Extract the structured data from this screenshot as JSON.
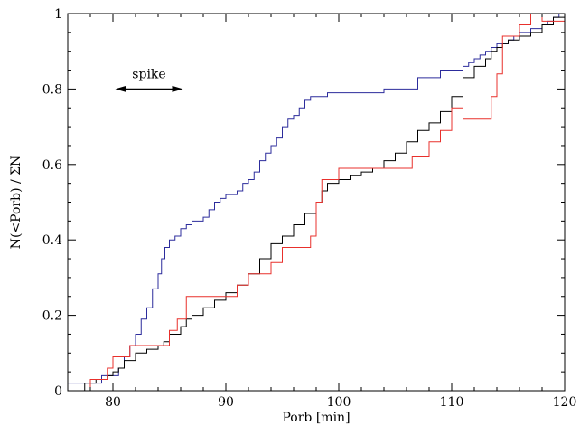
{
  "chart_data": {
    "type": "line",
    "xlabel": "Porb [min]",
    "ylabel": "N(<Porb) / ΣN",
    "xlim": [
      76,
      120
    ],
    "ylim": [
      0,
      1
    ],
    "x_ticks": [
      80,
      90,
      100,
      110,
      120
    ],
    "x_tick_labels": [
      "80",
      "90",
      "100",
      "110",
      "120"
    ],
    "y_ticks": [
      0,
      0.2,
      0.4,
      0.6,
      0.8,
      1
    ],
    "y_tick_labels": [
      "0",
      "0.2",
      "0.4",
      "0.6",
      "0.8",
      "1"
    ],
    "grid": false,
    "step": true,
    "annotation": {
      "text": "spike",
      "arrow_from_x": 80.2,
      "arrow_to_x": 86.2,
      "arrow_y": 0.8,
      "text_x": 83.2,
      "text_y": 0.84
    },
    "series": [
      {
        "color": "#2c2c9c",
        "points": [
          [
            76,
            0.0
          ],
          [
            76,
            0.02
          ],
          [
            79,
            0.02
          ],
          [
            79,
            0.04
          ],
          [
            80,
            0.04
          ],
          [
            80.5,
            0.06
          ],
          [
            81,
            0.09
          ],
          [
            81.5,
            0.12
          ],
          [
            82,
            0.15
          ],
          [
            82.5,
            0.19
          ],
          [
            83,
            0.22
          ],
          [
            83.5,
            0.27
          ],
          [
            84,
            0.31
          ],
          [
            84.3,
            0.35
          ],
          [
            84.6,
            0.38
          ],
          [
            85,
            0.4
          ],
          [
            85.5,
            0.41
          ],
          [
            86,
            0.43
          ],
          [
            86.5,
            0.44
          ],
          [
            87,
            0.45
          ],
          [
            88,
            0.46
          ],
          [
            88.5,
            0.48
          ],
          [
            89,
            0.5
          ],
          [
            89.5,
            0.51
          ],
          [
            90,
            0.52
          ],
          [
            91,
            0.53
          ],
          [
            91.5,
            0.55
          ],
          [
            92,
            0.56
          ],
          [
            92.5,
            0.58
          ],
          [
            93,
            0.61
          ],
          [
            93.5,
            0.63
          ],
          [
            94,
            0.65
          ],
          [
            94.5,
            0.67
          ],
          [
            95,
            0.7
          ],
          [
            95.5,
            0.72
          ],
          [
            96,
            0.73
          ],
          [
            96.5,
            0.75
          ],
          [
            97,
            0.77
          ],
          [
            97.5,
            0.78
          ],
          [
            98,
            0.78
          ],
          [
            99,
            0.79
          ],
          [
            104,
            0.79
          ],
          [
            104,
            0.8
          ],
          [
            107,
            0.81
          ],
          [
            107,
            0.83
          ],
          [
            109,
            0.84
          ],
          [
            109,
            0.85
          ],
          [
            111,
            0.86
          ],
          [
            111.5,
            0.87
          ],
          [
            112,
            0.88
          ],
          [
            112.5,
            0.89
          ],
          [
            113,
            0.9
          ],
          [
            113.5,
            0.91
          ],
          [
            114,
            0.92
          ],
          [
            115,
            0.93
          ],
          [
            115.5,
            0.94
          ],
          [
            116,
            0.95
          ],
          [
            117,
            0.96
          ],
          [
            118,
            0.97
          ],
          [
            118.5,
            0.98
          ],
          [
            119,
            0.99
          ],
          [
            119.5,
            1.0
          ],
          [
            120,
            1.0
          ]
        ]
      },
      {
        "color": "#000000",
        "points": [
          [
            76,
            0.0
          ],
          [
            77.5,
            0.0
          ],
          [
            77.5,
            0.02
          ],
          [
            78.5,
            0.03
          ],
          [
            79.5,
            0.04
          ],
          [
            80,
            0.05
          ],
          [
            80.5,
            0.06
          ],
          [
            81,
            0.08
          ],
          [
            82,
            0.1
          ],
          [
            83,
            0.11
          ],
          [
            84,
            0.12
          ],
          [
            84.5,
            0.13
          ],
          [
            85,
            0.15
          ],
          [
            86,
            0.17
          ],
          [
            86.5,
            0.19
          ],
          [
            87,
            0.2
          ],
          [
            88,
            0.22
          ],
          [
            89,
            0.24
          ],
          [
            90,
            0.26
          ],
          [
            91,
            0.28
          ],
          [
            92,
            0.31
          ],
          [
            93,
            0.35
          ],
          [
            94,
            0.39
          ],
          [
            95,
            0.41
          ],
          [
            96,
            0.44
          ],
          [
            97,
            0.47
          ],
          [
            98,
            0.5
          ],
          [
            98.5,
            0.53
          ],
          [
            99,
            0.55
          ],
          [
            100,
            0.56
          ],
          [
            101,
            0.57
          ],
          [
            102,
            0.58
          ],
          [
            103,
            0.59
          ],
          [
            104,
            0.61
          ],
          [
            105,
            0.63
          ],
          [
            106,
            0.66
          ],
          [
            107,
            0.69
          ],
          [
            108,
            0.71
          ],
          [
            109,
            0.74
          ],
          [
            110,
            0.78
          ],
          [
            111,
            0.83
          ],
          [
            112,
            0.86
          ],
          [
            113,
            0.88
          ],
          [
            113.5,
            0.9
          ],
          [
            114,
            0.91
          ],
          [
            114.5,
            0.92
          ],
          [
            115,
            0.93
          ],
          [
            116,
            0.94
          ],
          [
            117,
            0.95
          ],
          [
            118,
            0.97
          ],
          [
            119,
            0.99
          ],
          [
            120,
            1.0
          ]
        ]
      },
      {
        "color": "#e8302c",
        "points": [
          [
            76,
            0.0
          ],
          [
            78,
            0.0
          ],
          [
            78,
            0.03
          ],
          [
            79.5,
            0.03
          ],
          [
            79.5,
            0.06
          ],
          [
            80,
            0.06
          ],
          [
            80,
            0.09
          ],
          [
            81.5,
            0.09
          ],
          [
            81.5,
            0.12
          ],
          [
            85,
            0.12
          ],
          [
            85,
            0.16
          ],
          [
            85.7,
            0.16
          ],
          [
            85.7,
            0.19
          ],
          [
            86.5,
            0.19
          ],
          [
            86.5,
            0.25
          ],
          [
            91,
            0.25
          ],
          [
            91,
            0.28
          ],
          [
            92,
            0.28
          ],
          [
            92,
            0.31
          ],
          [
            94,
            0.31
          ],
          [
            94,
            0.34
          ],
          [
            95,
            0.34
          ],
          [
            95,
            0.38
          ],
          [
            97.5,
            0.38
          ],
          [
            97.5,
            0.41
          ],
          [
            98,
            0.41
          ],
          [
            98,
            0.5
          ],
          [
            98.5,
            0.5
          ],
          [
            98.5,
            0.56
          ],
          [
            100,
            0.56
          ],
          [
            100,
            0.59
          ],
          [
            106.5,
            0.59
          ],
          [
            106.5,
            0.62
          ],
          [
            108,
            0.62
          ],
          [
            108,
            0.66
          ],
          [
            109,
            0.66
          ],
          [
            109,
            0.69
          ],
          [
            110,
            0.69
          ],
          [
            110,
            0.75
          ],
          [
            111,
            0.75
          ],
          [
            111,
            0.72
          ],
          [
            113.5,
            0.72
          ],
          [
            113.5,
            0.78
          ],
          [
            114,
            0.78
          ],
          [
            114,
            0.84
          ],
          [
            114.5,
            0.84
          ],
          [
            114.5,
            0.94
          ],
          [
            116,
            0.94
          ],
          [
            116,
            0.97
          ],
          [
            117,
            0.97
          ],
          [
            117,
            1.0
          ],
          [
            118,
            1.0
          ],
          [
            118,
            0.98
          ],
          [
            120,
            0.98
          ]
        ]
      }
    ]
  }
}
